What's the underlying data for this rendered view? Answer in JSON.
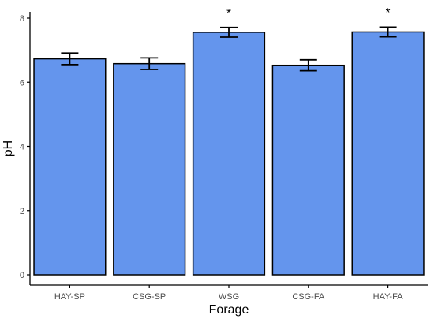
{
  "chart_data": {
    "type": "bar",
    "categories": [
      "HAY-SP",
      "CSG-SP",
      "WSG",
      "CSG-FA",
      "HAY-FA"
    ],
    "values": [
      6.73,
      6.58,
      7.56,
      6.53,
      7.57
    ],
    "error_low": [
      6.55,
      6.4,
      7.41,
      6.36,
      7.42
    ],
    "error_high": [
      6.91,
      6.76,
      7.71,
      6.7,
      7.72
    ],
    "annotations": [
      "",
      "",
      "*",
      "",
      "*"
    ],
    "xlabel": "Forage",
    "ylabel": "pH",
    "ylim": [
      0,
      8
    ],
    "yticks": [
      0,
      2,
      4,
      6,
      8
    ],
    "grid": false,
    "colors": {
      "bar_fill": "#6495ED",
      "bar_stroke": "#000000",
      "axis": "#000000",
      "error_bar": "#000000"
    }
  }
}
